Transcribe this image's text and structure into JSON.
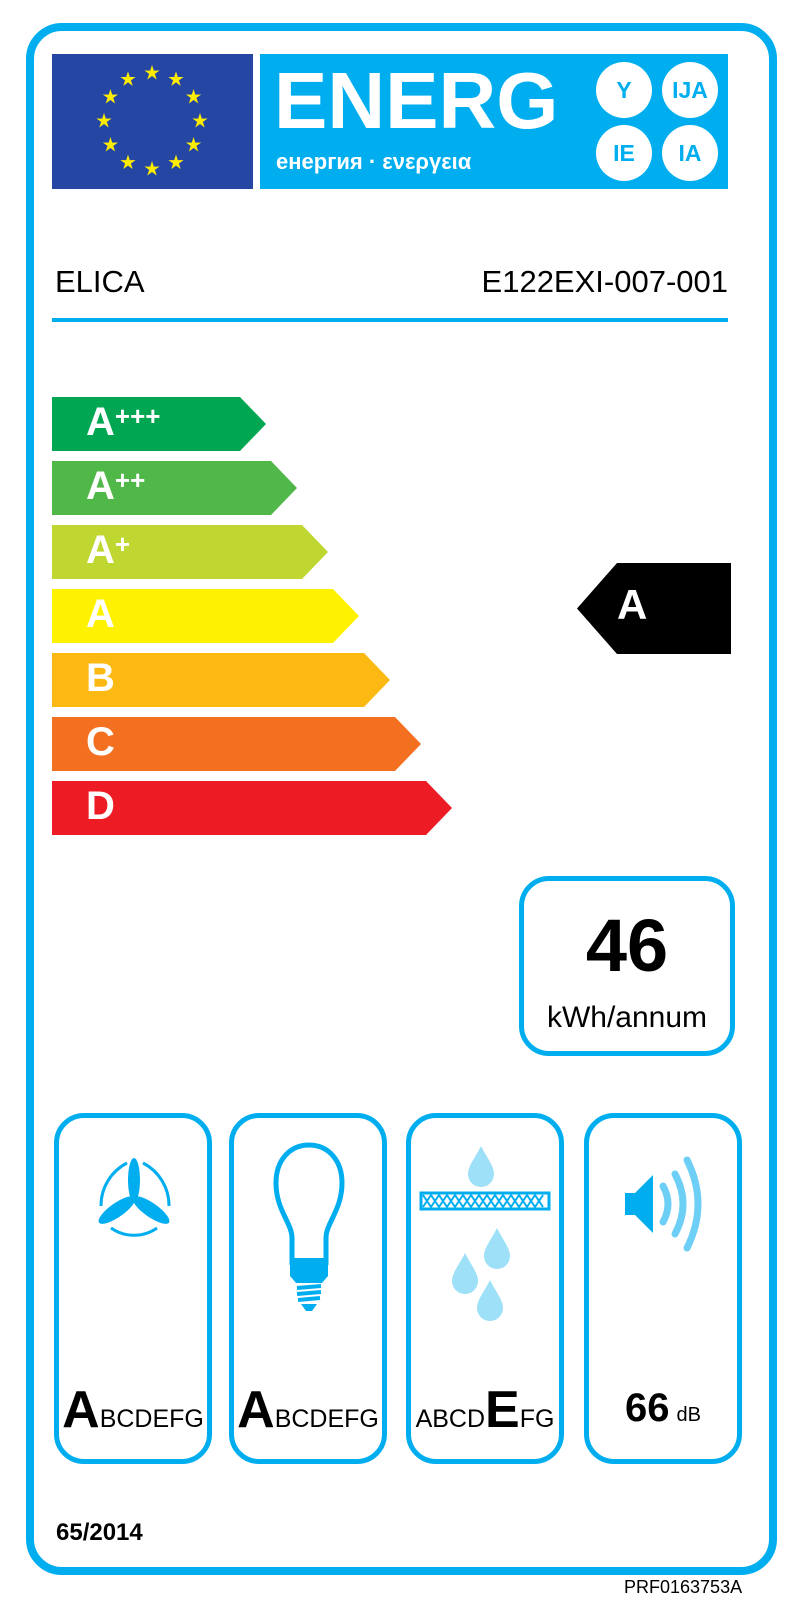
{
  "header": {
    "energy_word": "ENERG",
    "energy_sub": "енергия · ενεργεια",
    "suffixes": [
      "Y",
      "IJA",
      "IE",
      "IA"
    ]
  },
  "supplier": "ELICA",
  "model": "E122EXI-007-001",
  "scale": [
    {
      "base": "A",
      "sup": "+++",
      "color": "#00a651"
    },
    {
      "base": "A",
      "sup": "++",
      "color": "#50b848"
    },
    {
      "base": "A",
      "sup": "+",
      "color": "#bfd730"
    },
    {
      "base": "A",
      "sup": "",
      "color": "#fff200"
    },
    {
      "base": "B",
      "sup": "",
      "color": "#fdb913"
    },
    {
      "base": "C",
      "sup": "",
      "color": "#f37021"
    },
    {
      "base": "D",
      "sup": "",
      "color": "#ed1c24"
    }
  ],
  "rating": "A",
  "consumption": {
    "value": "46",
    "unit": "kWh/annum"
  },
  "panels": [
    {
      "icon": "fan-icon",
      "classes": {
        "pre": "",
        "big": "A",
        "post": "BCDEFG"
      }
    },
    {
      "icon": "lightbulb-icon",
      "classes": {
        "pre": "",
        "big": "A",
        "post": "BCDEFG"
      }
    },
    {
      "icon": "grease-filter-icon",
      "classes": {
        "pre": "ABCD",
        "big": "E",
        "post": "FG"
      }
    },
    {
      "icon": "speaker-icon",
      "noise": "66",
      "noise_unit": "dB"
    }
  ],
  "regulation": "65/2014",
  "label_code": "PRF0163753A",
  "colors": {
    "frame": "#00aeef",
    "flag": "#2547a3",
    "stars": "#ffed00"
  }
}
